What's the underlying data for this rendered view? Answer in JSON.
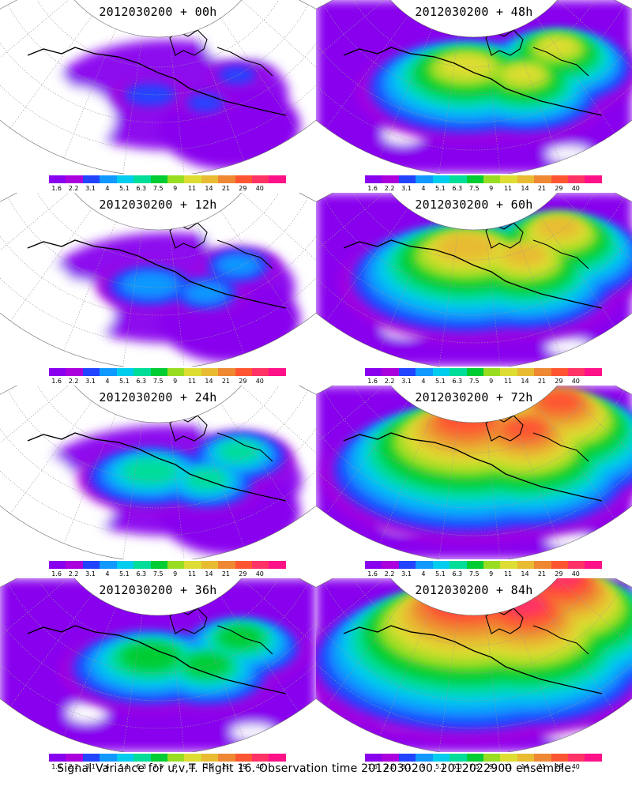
{
  "panels": [
    {
      "title": "2012030200 + 00h",
      "lead_hours": 0
    },
    {
      "title": "2012030200 + 48h",
      "lead_hours": 48
    },
    {
      "title": "2012030200 + 12h",
      "lead_hours": 12
    },
    {
      "title": "2012030200 + 60h",
      "lead_hours": 60
    },
    {
      "title": "2012030200 + 24h",
      "lead_hours": 24
    },
    {
      "title": "2012030200 + 72h",
      "lead_hours": 72
    },
    {
      "title": "2012030200 + 36h",
      "lead_hours": 36
    },
    {
      "title": "2012030200 + 84h",
      "lead_hours": 84
    }
  ],
  "colorbar": {
    "levels": [
      "1.6",
      "2.2",
      "3.1",
      "4",
      "5.1",
      "6.3",
      "7.5",
      "9",
      "11",
      "14",
      "21",
      "29",
      "40"
    ],
    "colors": [
      "#8800ee",
      "#aa00dd",
      "#2244ff",
      "#1199ff",
      "#00ccee",
      "#00dd99",
      "#00cc33",
      "#99dd22",
      "#dddd33",
      "#e8bb33",
      "#ee8833",
      "#ff5533",
      "#ff3366",
      "#ff1188"
    ]
  },
  "footer": "Signal Variance for u,v,T. Flight 16. Observation time 2012030200. 2012022900 ensemble."
}
